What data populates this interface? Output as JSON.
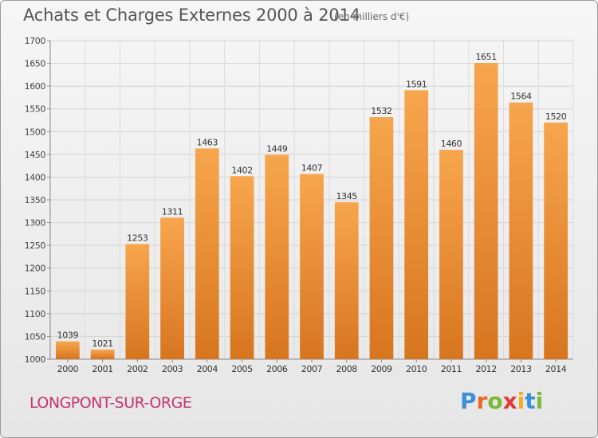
{
  "header": {
    "title": "Achats et Charges Externes 2000 à 2014",
    "unit": "(en milliers d'€)"
  },
  "footer": {
    "place": "LONGPONT-SUR-ORGE",
    "logo_text": "Proxiti",
    "logo_letters": [
      {
        "char": "P",
        "color": "#3a8fd8"
      },
      {
        "char": "r",
        "color": "#e86a2a"
      },
      {
        "char": "o",
        "color": "#7ab83a"
      },
      {
        "char": "x",
        "color": "#e03a3a"
      },
      {
        "char": "i",
        "color": "#f0b020"
      },
      {
        "char": "t",
        "color": "#3a8fd8"
      },
      {
        "char": "i",
        "color": "#7ab83a"
      }
    ]
  },
  "chart_data": {
    "type": "bar",
    "title": "Achats et Charges Externes 2000 à 2014",
    "subtitle": "(en milliers d'€)",
    "xlabel": "",
    "ylabel": "",
    "categories": [
      "2000",
      "2001",
      "2002",
      "2003",
      "2004",
      "2005",
      "2006",
      "2007",
      "2008",
      "2009",
      "2010",
      "2011",
      "2012",
      "2013",
      "2014"
    ],
    "values": [
      1039,
      1021,
      1253,
      1311,
      1463,
      1402,
      1449,
      1407,
      1345,
      1532,
      1591,
      1460,
      1651,
      1564,
      1520
    ],
    "ylim": [
      1000,
      1700
    ],
    "yticks": [
      1000,
      1050,
      1100,
      1150,
      1200,
      1250,
      1300,
      1350,
      1400,
      1450,
      1500,
      1550,
      1600,
      1650,
      1700
    ],
    "grid": true,
    "bar_color_top": "#f7a64e",
    "bar_color_bottom": "#d8751f"
  }
}
